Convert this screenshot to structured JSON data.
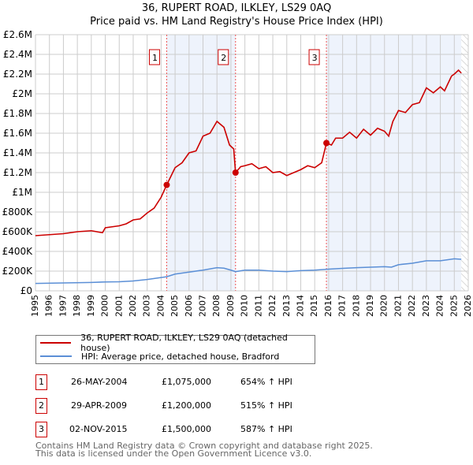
{
  "chart_data": {
    "type": "line",
    "title": "36, RUPERT ROAD, ILKLEY, LS29 0AQ",
    "subtitle": "Price paid vs. HM Land Registry's House Price Index (HPI)",
    "xlim": [
      1995,
      2026
    ],
    "ylim": [
      0,
      2600000
    ],
    "y_ticks": [
      {
        "v": 0,
        "label": "£0"
      },
      {
        "v": 200000,
        "label": "£200K"
      },
      {
        "v": 400000,
        "label": "£400K"
      },
      {
        "v": 600000,
        "label": "£600K"
      },
      {
        "v": 800000,
        "label": "£800K"
      },
      {
        "v": 1000000,
        "label": "£1M"
      },
      {
        "v": 1200000,
        "label": "£1.2M"
      },
      {
        "v": 1400000,
        "label": "£1.4M"
      },
      {
        "v": 1600000,
        "label": "£1.6M"
      },
      {
        "v": 1800000,
        "label": "£1.8M"
      },
      {
        "v": 2000000,
        "label": "£2M"
      },
      {
        "v": 2200000,
        "label": "£2.2M"
      },
      {
        "v": 2400000,
        "label": "£2.4M"
      },
      {
        "v": 2600000,
        "label": "£2.6M"
      }
    ],
    "x_ticks": [
      "1995",
      "1996",
      "1997",
      "1998",
      "1999",
      "2000",
      "2001",
      "2002",
      "2003",
      "2004",
      "2005",
      "2006",
      "2007",
      "2008",
      "2009",
      "2010",
      "2011",
      "2012",
      "2013",
      "2014",
      "2015",
      "2016",
      "2017",
      "2018",
      "2019",
      "2020",
      "2021",
      "2022",
      "2023",
      "2024",
      "2025",
      "2026"
    ],
    "grid": true,
    "shaded_ranges": [
      [
        2004.4,
        2009.33
      ],
      [
        2015.84,
        2025.5
      ]
    ],
    "hatched_from": 2025.5,
    "series": [
      {
        "name": "36, RUPERT ROAD, ILKLEY, LS29 0AQ (detached house)",
        "color": "#cc0000",
        "x": [
          1995,
          1996,
          1997,
          1998,
          1999,
          1999.8,
          2000,
          2001,
          2001.5,
          2002,
          2002.5,
          2003,
          2003.5,
          2004,
          2004.4,
          2005,
          2005.5,
          2006,
          2006.5,
          2007,
          2007.5,
          2008,
          2008.5,
          2008.9,
          2009.2,
          2009.33,
          2009.7,
          2010,
          2010.5,
          2011,
          2011.5,
          2012,
          2012.5,
          2013,
          2013.5,
          2014,
          2014.5,
          2015,
          2015.5,
          2015.84,
          2016.2,
          2016.5,
          2017,
          2017.5,
          2018,
          2018.5,
          2019,
          2019.5,
          2020,
          2020.3,
          2020.6,
          2021,
          2021.5,
          2022,
          2022.5,
          2023,
          2023.5,
          2024,
          2024.3,
          2024.8,
          2025,
          2025.3,
          2025.5
        ],
        "y": [
          560000,
          570000,
          580000,
          600000,
          610000,
          590000,
          640000,
          660000,
          680000,
          720000,
          730000,
          790000,
          840000,
          950000,
          1075000,
          1250000,
          1300000,
          1400000,
          1420000,
          1570000,
          1600000,
          1720000,
          1660000,
          1480000,
          1440000,
          1200000,
          1260000,
          1270000,
          1290000,
          1240000,
          1260000,
          1200000,
          1210000,
          1170000,
          1200000,
          1230000,
          1270000,
          1250000,
          1300000,
          1500000,
          1480000,
          1550000,
          1550000,
          1610000,
          1550000,
          1640000,
          1580000,
          1650000,
          1620000,
          1570000,
          1720000,
          1830000,
          1810000,
          1890000,
          1910000,
          2060000,
          2010000,
          2070000,
          2030000,
          2180000,
          2200000,
          2240000,
          2210000
        ]
      },
      {
        "name": "HPI: Average price, detached house, Bradford",
        "color": "#5b8fd6",
        "x": [
          1995,
          1997,
          1999,
          2000,
          2001,
          2002,
          2003,
          2004,
          2004.4,
          2005,
          2006,
          2007,
          2008,
          2008.5,
          2009,
          2009.33,
          2010,
          2011,
          2012,
          2013,
          2014,
          2015,
          2016,
          2017,
          2018,
          2019,
          2020,
          2020.5,
          2021,
          2022,
          2023,
          2024,
          2025,
          2025.5
        ],
        "y": [
          75000,
          80000,
          85000,
          90000,
          92000,
          100000,
          115000,
          135000,
          143000,
          170000,
          190000,
          210000,
          235000,
          230000,
          210000,
          195000,
          210000,
          210000,
          200000,
          195000,
          205000,
          210000,
          220000,
          228000,
          235000,
          240000,
          245000,
          240000,
          265000,
          280000,
          305000,
          305000,
          325000,
          320000
        ]
      }
    ],
    "sales": [
      {
        "n": "1",
        "x": 2004.4,
        "y": 1075000,
        "date": "26-MAY-2004",
        "price": "£1,075,000",
        "hpi": "654% ↑ HPI"
      },
      {
        "n": "2",
        "x": 2009.33,
        "y": 1200000,
        "date": "29-APR-2009",
        "price": "£1,200,000",
        "hpi": "515% ↑ HPI"
      },
      {
        "n": "3",
        "x": 2015.84,
        "y": 1500000,
        "date": "02-NOV-2015",
        "price": "£1,500,000",
        "hpi": "587% ↑ HPI"
      }
    ]
  },
  "footer": {
    "line1": "Contains HM Land Registry data © Crown copyright and database right 2025.",
    "line2": "This data is licensed under the Open Government Licence v3.0."
  }
}
